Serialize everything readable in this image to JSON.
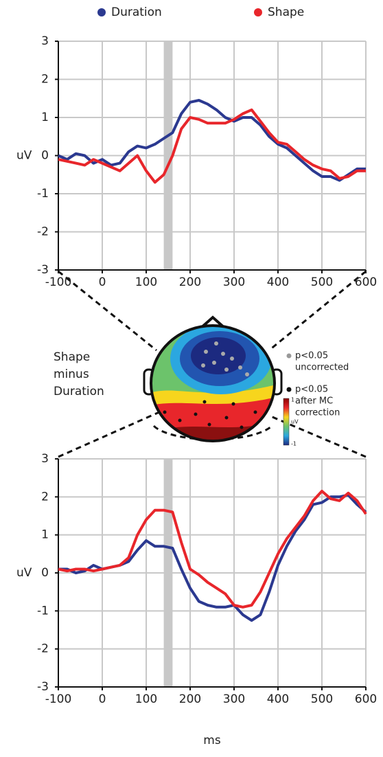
{
  "chart_data": [
    {
      "type": "line",
      "ylabel": "uV",
      "x": [
        -100,
        -80,
        -60,
        -40,
        -20,
        0,
        20,
        40,
        60,
        80,
        100,
        120,
        140,
        160,
        180,
        200,
        220,
        240,
        260,
        280,
        300,
        320,
        340,
        360,
        380,
        400,
        420,
        440,
        460,
        480,
        500,
        520,
        540,
        560,
        580,
        600
      ],
      "series": [
        {
          "name": "Duration",
          "color": "#2b3990",
          "values": [
            0,
            -0.1,
            0.05,
            0,
            -0.2,
            -0.1,
            -0.25,
            -0.2,
            0.1,
            0.25,
            0.2,
            0.3,
            0.45,
            0.6,
            1.1,
            1.4,
            1.45,
            1.35,
            1.2,
            1.0,
            0.9,
            1.0,
            1.0,
            0.8,
            0.5,
            0.3,
            0.2,
            0.0,
            -0.2,
            -0.4,
            -0.55,
            -0.55,
            -0.65,
            -0.5,
            -0.35,
            -0.35
          ]
        },
        {
          "name": "Shape",
          "color": "#e8262b",
          "values": [
            -0.1,
            -0.15,
            -0.2,
            -0.25,
            -0.1,
            -0.2,
            -0.3,
            -0.4,
            -0.2,
            0,
            -0.4,
            -0.7,
            -0.5,
            0.0,
            0.7,
            1.0,
            0.95,
            0.85,
            0.85,
            0.85,
            0.95,
            1.1,
            1.2,
            0.9,
            0.6,
            0.35,
            0.3,
            0.1,
            -0.1,
            -0.25,
            -0.35,
            -0.4,
            -0.6,
            -0.55,
            -0.4,
            -0.4
          ]
        }
      ],
      "shaded_range": [
        140,
        160
      ],
      "xlim": [
        -100,
        600
      ],
      "xticks": [
        -100,
        0,
        100,
        200,
        300,
        400,
        500,
        600
      ],
      "ylim": [
        -3,
        3
      ],
      "yticks": [
        -3,
        -2,
        -1,
        0,
        1,
        2,
        3
      ],
      "grid": true
    },
    {
      "type": "line",
      "ylabel": "uV",
      "xlabel": "ms",
      "x": [
        -100,
        -80,
        -60,
        -40,
        -20,
        0,
        20,
        40,
        60,
        80,
        100,
        120,
        140,
        160,
        180,
        200,
        220,
        240,
        260,
        280,
        300,
        320,
        340,
        360,
        380,
        400,
        420,
        440,
        460,
        480,
        500,
        520,
        540,
        560,
        580,
        600
      ],
      "series": [
        {
          "name": "Duration",
          "color": "#2b3990",
          "values": [
            0.1,
            0.1,
            0.0,
            0.05,
            0.2,
            0.1,
            0.15,
            0.2,
            0.3,
            0.6,
            0.85,
            0.7,
            0.7,
            0.65,
            0.1,
            -0.4,
            -0.75,
            -0.85,
            -0.9,
            -0.9,
            -0.85,
            -1.1,
            -1.25,
            -1.1,
            -0.5,
            0.2,
            0.7,
            1.1,
            1.4,
            1.8,
            1.85,
            2.0,
            2.0,
            2.05,
            1.8,
            1.6
          ]
        },
        {
          "name": "Shape",
          "color": "#e8262b",
          "values": [
            0.1,
            0.05,
            0.1,
            0.1,
            0.05,
            0.1,
            0.15,
            0.2,
            0.4,
            1.0,
            1.4,
            1.65,
            1.65,
            1.6,
            0.8,
            0.1,
            -0.05,
            -0.25,
            -0.4,
            -0.55,
            -0.85,
            -0.9,
            -0.85,
            -0.5,
            0.0,
            0.5,
            0.9,
            1.2,
            1.5,
            1.9,
            2.15,
            1.95,
            1.9,
            2.1,
            1.9,
            1.55
          ]
        }
      ],
      "shaded_range": [
        140,
        160
      ],
      "xlim": [
        -100,
        600
      ],
      "xticks": [
        -100,
        0,
        100,
        200,
        300,
        400,
        500,
        600
      ],
      "ylim": [
        -3,
        3
      ],
      "yticks": [
        -3,
        -2,
        -1,
        0,
        1,
        2,
        3
      ],
      "grid": true
    }
  ],
  "topomap": {
    "label_lines": [
      "Shape",
      "minus",
      "Duration"
    ],
    "legend": [
      {
        "color": "#999999",
        "lines": [
          "p<0.05",
          "uncorrected"
        ]
      },
      {
        "color": "#111111",
        "lines": [
          "p<0.05",
          "after MC",
          "correction"
        ]
      }
    ],
    "colorbar": {
      "top": "1",
      "unit": "uV",
      "bottom": "-1"
    }
  }
}
